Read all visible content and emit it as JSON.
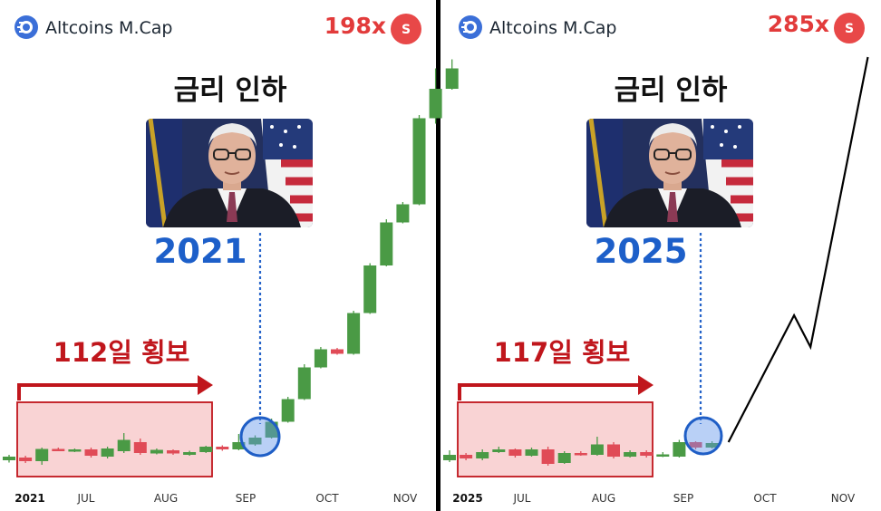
{
  "colors": {
    "up": "#4a9a45",
    "down": "#e04b57",
    "accent_red": "#e23b3b",
    "range_red": "#c0161c",
    "year_blue": "#1d5fc9",
    "divider": "#000000"
  },
  "icons": {
    "brand": "altcoins-logo-icon",
    "coin": "s-coin-icon",
    "photo": "fed-chair-portrait-image"
  },
  "panels": [
    {
      "brand": "Altcoins M.Cap",
      "multiplier": "198x",
      "coin_letter": "S",
      "headline": "금리 인하",
      "year": "2021",
      "range_label": "112일 횡보",
      "ticks": [
        "2021",
        "JUL",
        "AUG",
        "SEP",
        "OCT",
        "NOV"
      ]
    },
    {
      "brand": "Altcoins M.Cap",
      "multiplier": "285x",
      "coin_letter": "S",
      "headline": "금리 인하",
      "year": "2025",
      "range_label": "117일 횡보",
      "ticks": [
        "2025",
        "JUL",
        "AUG",
        "SEP",
        "OCT",
        "NOV"
      ]
    }
  ],
  "chart_data": [
    {
      "type": "candlestick",
      "title": "Altcoins M.Cap",
      "x_ticks": [
        "2021",
        "JUL",
        "AUG",
        "SEP",
        "OCT",
        "NOV"
      ],
      "y_scale": "relative (no axis labels)",
      "final_multiple": "198x",
      "range_days": 112,
      "candles": [
        {
          "o": 100,
          "c": 108,
          "h": 112,
          "l": 95
        },
        {
          "o": 106,
          "c": 98,
          "h": 110,
          "l": 94
        },
        {
          "o": 98,
          "c": 125,
          "h": 128,
          "l": 90
        },
        {
          "o": 125,
          "c": 122,
          "h": 128,
          "l": 120
        },
        {
          "o": 120,
          "c": 124,
          "h": 126,
          "l": 118
        },
        {
          "o": 124,
          "c": 110,
          "h": 128,
          "l": 106
        },
        {
          "o": 108,
          "c": 126,
          "h": 130,
          "l": 104
        },
        {
          "o": 120,
          "c": 145,
          "h": 160,
          "l": 116
        },
        {
          "o": 140,
          "c": 116,
          "h": 148,
          "l": 112
        },
        {
          "o": 115,
          "c": 123,
          "h": 126,
          "l": 113
        },
        {
          "o": 122,
          "c": 115,
          "h": 124,
          "l": 112
        },
        {
          "o": 112,
          "c": 118,
          "h": 121,
          "l": 110
        },
        {
          "o": 118,
          "c": 130,
          "h": 132,
          "l": 116
        },
        {
          "o": 130,
          "c": 124,
          "h": 133,
          "l": 121
        },
        {
          "o": 124,
          "c": 140,
          "h": 158,
          "l": 122
        },
        {
          "o": 135,
          "c": 150,
          "h": 155,
          "l": 132
        },
        {
          "o": 150,
          "c": 185,
          "h": 192,
          "l": 148
        },
        {
          "o": 185,
          "c": 235,
          "h": 240,
          "l": 183
        },
        {
          "o": 235,
          "c": 305,
          "h": 312,
          "l": 233
        },
        {
          "o": 305,
          "c": 345,
          "h": 350,
          "l": 303
        },
        {
          "o": 345,
          "c": 335,
          "h": 348,
          "l": 333
        },
        {
          "o": 335,
          "c": 425,
          "h": 430,
          "l": 333
        },
        {
          "o": 425,
          "c": 530,
          "h": 535,
          "l": 423
        },
        {
          "o": 530,
          "c": 625,
          "h": 632,
          "l": 528
        },
        {
          "o": 625,
          "c": 665,
          "h": 670,
          "l": 623
        },
        {
          "o": 665,
          "c": 855,
          "h": 862,
          "l": 663
        },
        {
          "o": 855,
          "c": 920,
          "h": 965,
          "l": 843
        },
        {
          "o": 920,
          "c": 965,
          "h": 985,
          "l": 918
        }
      ],
      "sideways_range": {
        "from": 0,
        "to": 13
      },
      "highlight": {
        "candle": 16,
        "label": "2021"
      }
    },
    {
      "type": "candlestick",
      "title": "Altcoins M.Cap",
      "x_ticks": [
        "2025",
        "JUL",
        "AUG",
        "SEP",
        "OCT",
        "NOV"
      ],
      "y_scale": "relative (no axis labels)",
      "final_multiple": "285x",
      "range_days": 117,
      "candles": [
        {
          "o": 100,
          "c": 112,
          "h": 122,
          "l": 96
        },
        {
          "o": 112,
          "c": 104,
          "h": 116,
          "l": 100
        },
        {
          "o": 104,
          "c": 118,
          "h": 124,
          "l": 100
        },
        {
          "o": 118,
          "c": 124,
          "h": 130,
          "l": 116
        },
        {
          "o": 124,
          "c": 110,
          "h": 126,
          "l": 106
        },
        {
          "o": 110,
          "c": 124,
          "h": 128,
          "l": 108
        },
        {
          "o": 124,
          "c": 92,
          "h": 130,
          "l": 88
        },
        {
          "o": 94,
          "c": 116,
          "h": 120,
          "l": 92
        },
        {
          "o": 116,
          "c": 112,
          "h": 120,
          "l": 110
        },
        {
          "o": 112,
          "c": 135,
          "h": 152,
          "l": 110
        },
        {
          "o": 135,
          "c": 108,
          "h": 140,
          "l": 104
        },
        {
          "o": 108,
          "c": 118,
          "h": 122,
          "l": 106
        },
        {
          "o": 118,
          "c": 110,
          "h": 122,
          "l": 106
        },
        {
          "o": 110,
          "c": 113,
          "h": 118,
          "l": 107
        },
        {
          "o": 108,
          "c": 140,
          "h": 145,
          "l": 106
        },
        {
          "o": 140,
          "c": 128,
          "h": 142,
          "l": 124
        },
        {
          "o": 128,
          "c": 138,
          "h": 142,
          "l": 126
        }
      ],
      "projection": [
        [
          17,
          140
        ],
        [
          21,
          420
        ],
        [
          22,
          350
        ],
        [
          25.5,
          990
        ]
      ],
      "sideways_range": {
        "from": 0,
        "to": 13
      },
      "highlight": {
        "candle": 16,
        "label": "2025"
      }
    }
  ]
}
